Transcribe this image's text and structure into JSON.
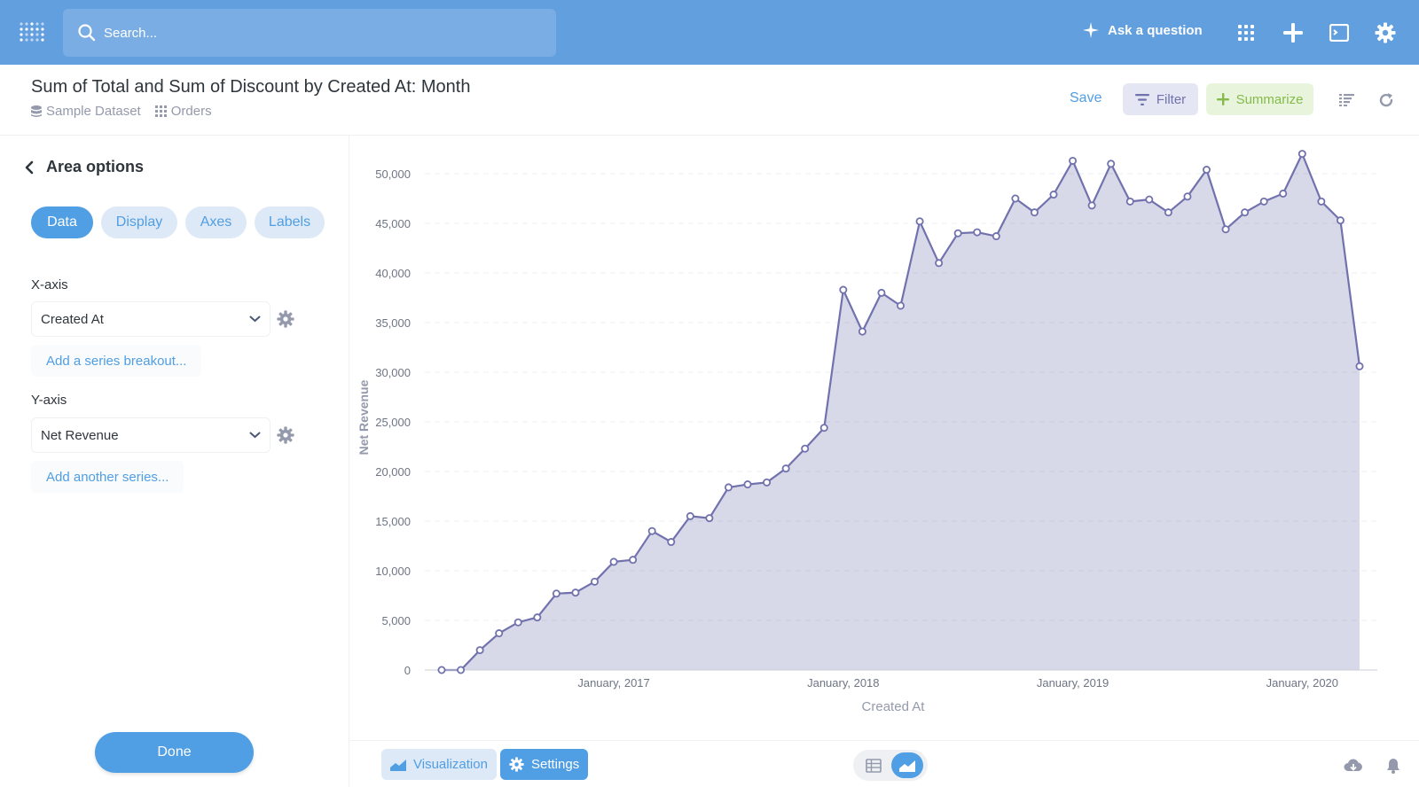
{
  "nav": {
    "search_placeholder": "Search...",
    "ask_label": "Ask a question",
    "brand_color": "#629fde"
  },
  "header": {
    "title": "Sum of Total and Sum of Discount by Created At: Month",
    "database": "Sample Dataset",
    "table": "Orders",
    "save_label": "Save",
    "filter_label": "Filter",
    "summarize_label": "Summarize"
  },
  "sidebar": {
    "title": "Area options",
    "tabs": [
      {
        "label": "Data",
        "active": true
      },
      {
        "label": "Display",
        "active": false
      },
      {
        "label": "Axes",
        "active": false
      },
      {
        "label": "Labels",
        "active": false
      }
    ],
    "x_axis_label": "X-axis",
    "x_axis_value": "Created At",
    "add_breakout_label": "Add a series breakout...",
    "y_axis_label": "Y-axis",
    "y_axis_value": "Net Revenue",
    "add_series_label": "Add another series...",
    "done_label": "Done"
  },
  "footer": {
    "visualization_label": "Visualization",
    "settings_label": "Settings"
  },
  "chart_data": {
    "type": "area",
    "xlabel": "Created At",
    "ylabel": "Net Revenue",
    "ylim": [
      0,
      50000
    ],
    "yticks": [
      0,
      5000,
      10000,
      15000,
      20000,
      25000,
      30000,
      35000,
      40000,
      45000,
      50000
    ],
    "ytick_labels": [
      "0",
      "5,000",
      "10,000",
      "15,000",
      "20,000",
      "25,000",
      "30,000",
      "35,000",
      "40,000",
      "45,000",
      "50,000"
    ],
    "xtick_labels": [
      "January, 2017",
      "January, 2018",
      "January, 2019",
      "January, 2020"
    ],
    "grid": "horizontal dashed",
    "color": "#7172ad",
    "series": [
      {
        "name": "Net Revenue",
        "x": [
          "2016-04",
          "2016-05",
          "2016-06",
          "2016-07",
          "2016-08",
          "2016-09",
          "2016-10",
          "2016-11",
          "2016-12",
          "2017-01",
          "2017-02",
          "2017-03",
          "2017-04",
          "2017-05",
          "2017-06",
          "2017-07",
          "2017-08",
          "2017-09",
          "2017-10",
          "2017-11",
          "2017-12",
          "2018-01",
          "2018-02",
          "2018-03",
          "2018-04",
          "2018-05",
          "2018-06",
          "2018-07",
          "2018-08",
          "2018-09",
          "2018-10",
          "2018-11",
          "2018-12",
          "2019-01",
          "2019-02",
          "2019-03",
          "2019-04",
          "2019-05",
          "2019-06",
          "2019-07",
          "2019-08",
          "2019-09",
          "2019-10",
          "2019-11",
          "2019-12",
          "2020-01",
          "2020-02",
          "2020-03",
          "2020-04"
        ],
        "values": [
          0,
          0,
          2000,
          3700,
          4800,
          5300,
          7700,
          7800,
          8900,
          10900,
          11100,
          14000,
          12900,
          15500,
          15300,
          18400,
          18700,
          18900,
          20300,
          22300,
          24400,
          38300,
          34100,
          38000,
          36700,
          45200,
          41000,
          44000,
          44100,
          43700,
          47500,
          46100,
          47900,
          51300,
          46800,
          51000,
          47200,
          47400,
          46100,
          47700,
          50400,
          44400,
          46100,
          47200,
          48000,
          52000,
          47200,
          45300,
          30600
        ]
      }
    ]
  }
}
